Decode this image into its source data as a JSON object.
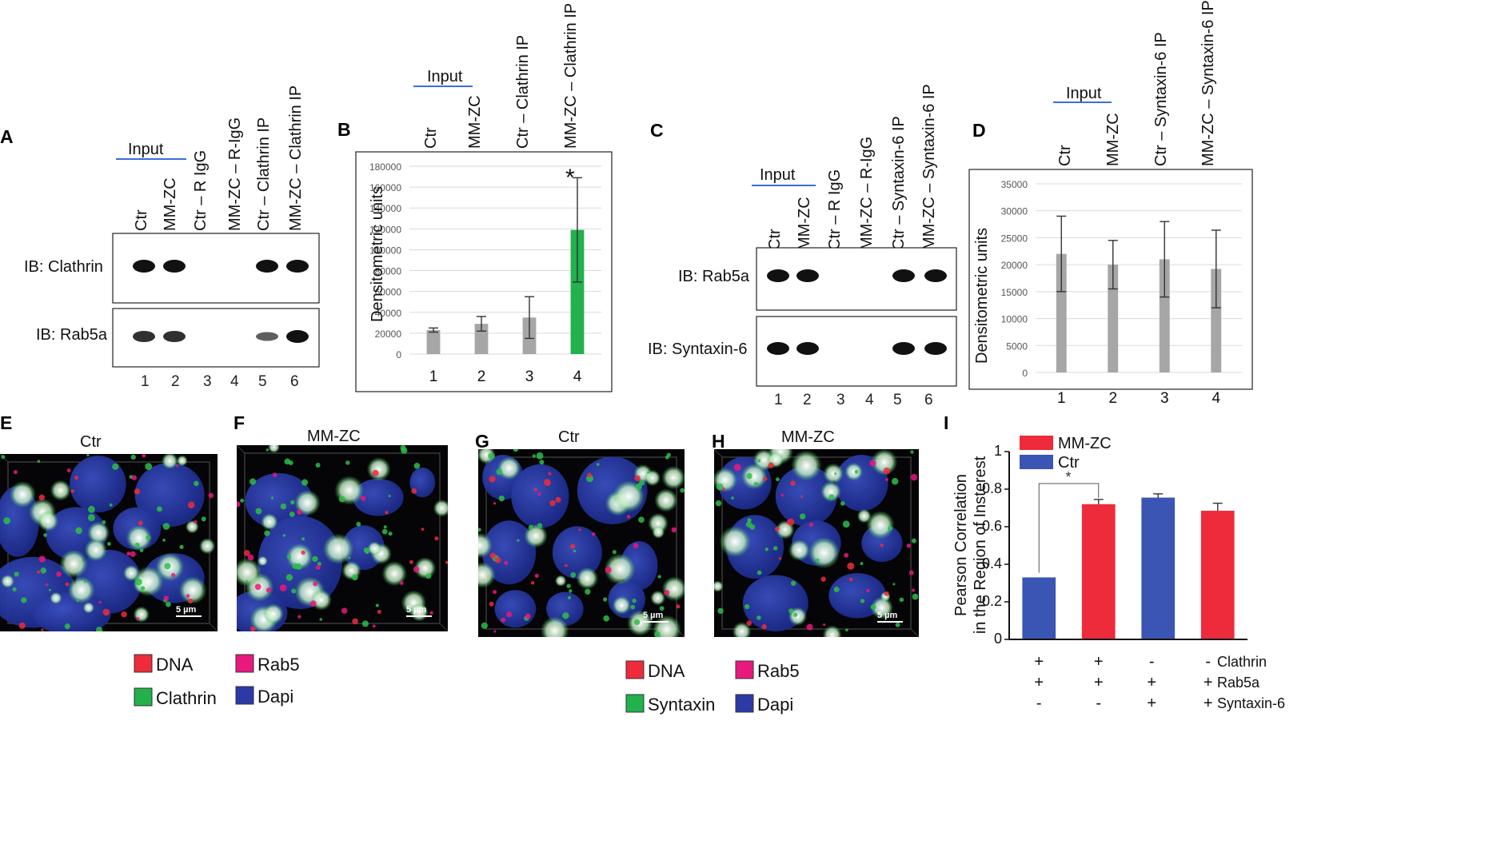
{
  "panels": {
    "A": {
      "letter": "A",
      "input_label": "Input",
      "lane_headers": [
        "Ctr",
        "MM-ZC",
        "Ctr – R IgG",
        "MM-ZC – R-IgG",
        "Ctr – Clathrin IP",
        "MM-ZC – Clathrin IP"
      ],
      "blots": [
        {
          "label": "IB: Clathrin",
          "band_intensity": [
            1,
            1,
            0,
            0,
            1,
            1
          ]
        },
        {
          "label": "IB: Rab5a",
          "band_intensity": [
            0.8,
            0.8,
            0,
            0,
            0.5,
            1
          ]
        }
      ],
      "lane_numbers": [
        "1",
        "2",
        "3",
        "4",
        "5",
        "6"
      ]
    },
    "B": {
      "letter": "B",
      "input_label": "Input",
      "headers": [
        "Ctr",
        "MM-ZC",
        "Ctr – Clathrin IP",
        "MM-ZC – Clathrin IP"
      ],
      "significance": "*"
    },
    "C": {
      "letter": "C",
      "input_label": "Input",
      "lane_headers": [
        "Ctr",
        "MM-ZC",
        "Ctr – R IgG",
        "MM-ZC – R-IgG",
        "Ctr – Syntaxin-6  IP",
        "MM-ZC – Syntaxin-6  IP"
      ],
      "blots": [
        {
          "label": "IB: Rab5a",
          "band_intensity": [
            1,
            1,
            0,
            0,
            1,
            1
          ]
        },
        {
          "label": "IB: Syntaxin-6",
          "band_intensity": [
            1,
            1,
            0,
            0,
            1,
            1
          ]
        }
      ],
      "lane_numbers": [
        "1",
        "2",
        "3",
        "4",
        "5",
        "6"
      ]
    },
    "D": {
      "letter": "D",
      "input_label": "Input",
      "headers": [
        "Ctr",
        "MM-ZC",
        "Ctr – Syntaxin-6  IP",
        "MM-ZC – Syntaxin-6  IP"
      ]
    },
    "E": {
      "letter": "E",
      "title": "Ctr",
      "scale_bar": "5 µm"
    },
    "F": {
      "letter": "F",
      "title": "MM-ZC",
      "scale_bar": "5 µm"
    },
    "G": {
      "letter": "G",
      "title": "Ctr",
      "scale_bar": "5 µm"
    },
    "H": {
      "letter": "H",
      "title": "MM-ZC",
      "scale_bar": "5 µm"
    },
    "I": {
      "letter": "I",
      "significance": "*",
      "rows": [
        {
          "signs": [
            "+",
            "+",
            "-",
            "-"
          ],
          "label": "Clathrin"
        },
        {
          "signs": [
            "+",
            "+",
            "+",
            "+"
          ],
          "label": "Rab5a"
        },
        {
          "signs": [
            "-",
            "-",
            "+",
            "+"
          ],
          "label": "Syntaxin-6"
        }
      ]
    }
  },
  "legends": {
    "left": [
      {
        "label": "DNA",
        "color": "#ee2b3b"
      },
      {
        "label": "Rab5",
        "color": "#e8187d"
      },
      {
        "label": "Clathrin",
        "color": "#22b14c"
      },
      {
        "label": "Dapi",
        "color": "#2b3aa6"
      }
    ],
    "right": [
      {
        "label": "DNA",
        "color": "#ee2b3b"
      },
      {
        "label": "Rab5",
        "color": "#e8187d"
      },
      {
        "label": "Syntaxin",
        "color": "#22b14c"
      },
      {
        "label": "Dapi",
        "color": "#2b3aa6"
      }
    ]
  },
  "colors": {
    "bar_gray": "#a6a6a6",
    "bar_green": "#22b14c",
    "bar_red": "#ee2b3b",
    "bar_blue": "#3b55b4",
    "input_line": "#3b6fd8"
  },
  "chart_data": [
    {
      "id": "B",
      "type": "bar",
      "categories": [
        "1",
        "2",
        "3",
        "4"
      ],
      "values": [
        23000,
        29000,
        35000,
        119000
      ],
      "errors": [
        2000,
        7000,
        20000,
        50000
      ],
      "ylabel": "Densitometric units",
      "ylim": [
        0,
        180000
      ],
      "yticks": [
        0,
        20000,
        40000,
        60000,
        80000,
        100000,
        120000,
        140000,
        160000,
        180000
      ],
      "bar_colors": [
        "#a6a6a6",
        "#a6a6a6",
        "#a6a6a6",
        "#22b14c"
      ],
      "grid": true
    },
    {
      "id": "D",
      "type": "bar",
      "categories": [
        "1",
        "2",
        "3",
        "4"
      ],
      "values": [
        22000,
        20000,
        21000,
        19200
      ],
      "errors": [
        7000,
        4500,
        7000,
        7200
      ],
      "ylabel": "Densitometric units",
      "ylim": [
        0,
        35000
      ],
      "yticks": [
        0,
        5000,
        10000,
        15000,
        20000,
        25000,
        30000,
        35000
      ],
      "bar_colors": [
        "#a6a6a6",
        "#a6a6a6",
        "#a6a6a6",
        "#a6a6a6"
      ],
      "grid": true
    },
    {
      "id": "I",
      "type": "bar",
      "categories": [
        "1",
        "2",
        "3",
        "4"
      ],
      "values": [
        0.33,
        0.72,
        0.755,
        0.685
      ],
      "errors": [
        0,
        0.025,
        0.02,
        0.04
      ],
      "ylabel": "Pearson Correlation in the Region of Insterest",
      "ylim": [
        0,
        1
      ],
      "yticks": [
        0,
        0.2,
        0.4,
        0.6,
        0.8,
        1
      ],
      "series": [
        {
          "name": "MM-ZC",
          "color": "#ee2b3b"
        },
        {
          "name": "Ctr",
          "color": "#3b55b4"
        }
      ],
      "bar_series": [
        "Ctr",
        "MM-ZC",
        "Ctr",
        "MM-ZC"
      ],
      "legend": "top-left",
      "grid": false
    }
  ]
}
